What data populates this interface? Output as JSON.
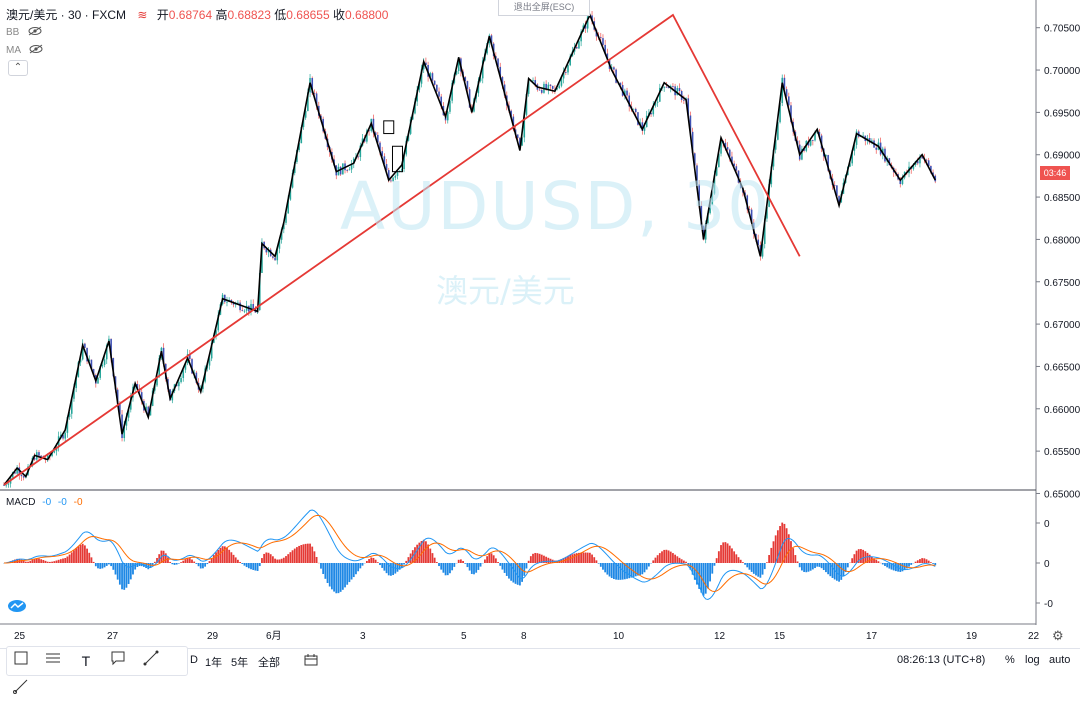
{
  "legend": {
    "symbol": "澳元/美元 · 30 · FXCM",
    "open_label": "开",
    "open": "0.68764",
    "high_label": "高",
    "high": "0.68823",
    "low_label": "低",
    "low": "0.68655",
    "close_label": "收",
    "close": "0.68800"
  },
  "indicators": {
    "bb": "BB",
    "ma": "MA"
  },
  "fullscreen_hint": "退出全屏(ESC)",
  "watermark": {
    "symbol": "AUDUSD, 30",
    "name": "澳元/美元"
  },
  "macd": {
    "label": "MACD",
    "v1": "-0",
    "v2": "-0",
    "v3": "-0"
  },
  "price_tag": "03:46",
  "toolbar": {
    "timeframes": [
      "D",
      "1年",
      "5年",
      "全部"
    ],
    "time": "08:26:13 (UTC+8)",
    "pct": "%",
    "log": "log",
    "auto": "auto"
  },
  "colors": {
    "up": "#26a69a",
    "down": "#ef5350",
    "zigzag": "#000000",
    "trend": "#e53935",
    "macd_fast": "#2196f3",
    "macd_signal": "#ff6d00"
  },
  "chart_data": {
    "type": "line",
    "price_axis": {
      "ticks": [
        "0.70500",
        "0.70000",
        "0.69500",
        "0.69000",
        "0.68500",
        "0.68000",
        "0.67500",
        "0.67000",
        "0.66500",
        "0.66000",
        "0.65500",
        "0.65000"
      ],
      "range": [
        0.651,
        0.7065
      ]
    },
    "macd_axis": {
      "ticks": [
        "0",
        "0",
        "-0"
      ]
    },
    "x_ticks": [
      "25",
      "27",
      "29",
      "6月",
      "3",
      "5",
      "8",
      "10",
      "12",
      "15",
      "17",
      "19",
      "22"
    ],
    "zigzag": {
      "x_index": [
        0,
        6,
        10,
        14,
        20,
        28,
        36,
        42,
        48,
        54,
        60,
        66,
        72,
        76,
        84,
        90,
        100,
        116,
        118,
        124,
        128,
        140,
        152,
        160,
        168,
        176,
        182,
        192,
        202,
        208,
        214,
        222,
        236,
        240,
        244,
        252,
        268,
        278,
        292,
        302,
        312,
        320,
        328,
        338,
        346,
        356,
        364,
        372,
        382,
        390,
        400,
        410,
        420,
        426
      ],
      "y": [
        0.651,
        0.653,
        0.652,
        0.6545,
        0.654,
        0.6575,
        0.6675,
        0.6633,
        0.668,
        0.657,
        0.663,
        0.659,
        0.6668,
        0.6612,
        0.666,
        0.662,
        0.673,
        0.6715,
        0.6795,
        0.678,
        0.682,
        0.6985,
        0.688,
        0.689,
        0.6937,
        0.687,
        0.6888,
        0.701,
        0.6945,
        0.7015,
        0.695,
        0.704,
        0.6905,
        0.699,
        0.698,
        0.6975,
        0.7065,
        0.7,
        0.693,
        0.6985,
        0.6965,
        0.68,
        0.692,
        0.686,
        0.678,
        0.6985,
        0.69,
        0.693,
        0.684,
        0.6925,
        0.691,
        0.687,
        0.69,
        0.687
      ]
    },
    "trendline": {
      "x_index": [
        0,
        306,
        364
      ],
      "y": [
        0.651,
        0.7065,
        0.678
      ]
    },
    "boxes": [
      {
        "x_index": 176,
        "y_top": 0.694,
        "y_bot": 0.6925
      },
      {
        "x_index": 180,
        "y_top": 0.691,
        "y_bot": 0.688
      }
    ]
  }
}
